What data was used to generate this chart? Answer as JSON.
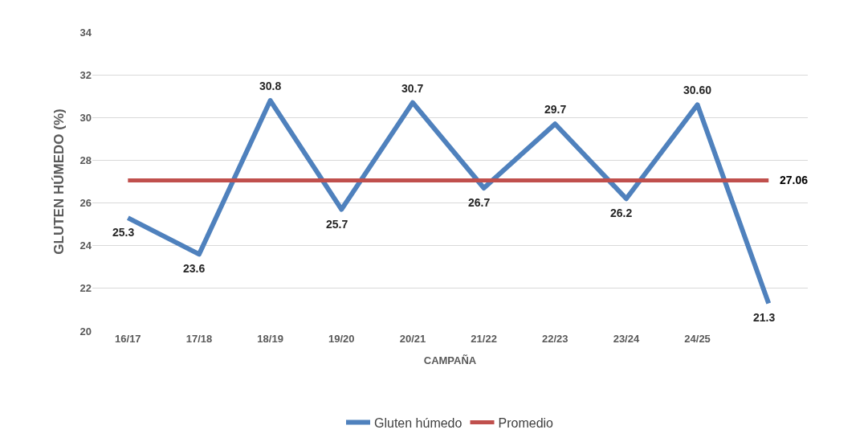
{
  "chart_data": {
    "type": "line",
    "xlabel": "CAMPAÑA",
    "ylabel": "GLUTEN HÚMEDO (%)",
    "categories": [
      "16/17",
      "17/18",
      "18/19",
      "19/20",
      "20/21",
      "21/22",
      "22/23",
      "23/24",
      "24/25",
      null
    ],
    "series": [
      {
        "name": "Gluten húmedo",
        "color": "#4f81bd",
        "values": [
          25.3,
          23.6,
          30.8,
          25.7,
          30.7,
          26.7,
          29.7,
          26.2,
          30.6,
          21.3
        ],
        "value_labels": [
          "25.3",
          "23.6",
          "30.8",
          "25.7",
          "30.7",
          "26.7",
          "29.7",
          "26.2",
          "30.60",
          "21.3"
        ]
      },
      {
        "name": "Promedio",
        "color": "#c0504d",
        "values": [
          27.06,
          27.06,
          27.06,
          27.06,
          27.06,
          27.06,
          27.06,
          27.06,
          27.06,
          27.06
        ],
        "value_labels": [
          null,
          null,
          null,
          null,
          null,
          null,
          null,
          null,
          null,
          "27.06"
        ]
      }
    ],
    "ylim": [
      20,
      34
    ],
    "yticks": [
      20,
      22,
      24,
      26,
      28,
      30,
      32,
      34
    ],
    "grid": "y",
    "legend": "bottom",
    "marker": "none",
    "line_style": "solid"
  }
}
